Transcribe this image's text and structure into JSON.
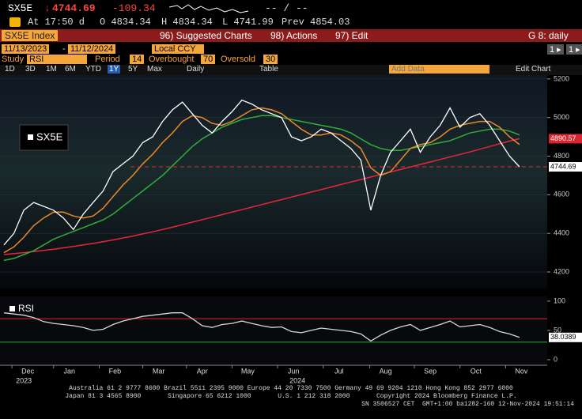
{
  "header": {
    "ticker": "SX5E",
    "change": "-109.34",
    "spread": "-- / --",
    "time": "At 17:50 d",
    "open": "O 4834.34",
    "high": "H 4834.34",
    "low": "L 4741.99",
    "prev": "Prev 4854.03"
  },
  "toolbar": {
    "security": "SX5E Index",
    "menu": [
      "96) Suggested Charts",
      "98) Actions",
      "97) Edit"
    ],
    "page": "G 8: daily"
  },
  "range": {
    "start": "11/13/2023",
    "end": "11/12/2024",
    "currency": "Local CCY",
    "pager": [
      "1 ▸",
      "1 ▸"
    ]
  },
  "study": {
    "label": "Study",
    "period_label": "Period",
    "ob_label": "Overbought",
    "os_label": "Oversold"
  },
  "controls": {
    "periods": [
      "1D",
      "3D",
      "1M",
      "6M",
      "YTD",
      "1Y",
      "5Y",
      "Max"
    ],
    "frequency": "Daily",
    "table": "Table",
    "add_data": "Add Data",
    "edit_chart": "Edit Chart"
  },
  "chart_data": [
    {
      "type": "line",
      "xlim": [
        -0.4,
        54.8
      ],
      "ylim": [
        4114,
        5220
      ],
      "yticks": [
        4200,
        4400,
        4600,
        4800,
        5000,
        5200
      ],
      "grid": true,
      "xticks": [
        {
          "value": 2.4,
          "label": "Dec"
        },
        {
          "value": 6.6,
          "label": "Jan"
        },
        {
          "value": 11.2,
          "label": "Feb"
        },
        {
          "value": 15.6,
          "label": "Mar"
        },
        {
          "value": 20.0,
          "label": "Apr"
        },
        {
          "value": 24.6,
          "label": "May"
        },
        {
          "value": 29.2,
          "label": "Jun"
        },
        {
          "value": 33.8,
          "label": "Jul"
        },
        {
          "value": 38.5,
          "label": "Aug"
        },
        {
          "value": 43.0,
          "label": "Sep"
        },
        {
          "value": 47.6,
          "label": "Oct"
        },
        {
          "value": 52.2,
          "label": "Nov"
        }
      ],
      "years": [
        {
          "value": 2.0,
          "label": "2023"
        },
        {
          "value": 29.6,
          "label": "2024"
        }
      ],
      "series": [
        {
          "name": "SX5E",
          "color": "#ffffff",
          "values": [
            4340,
            4400,
            4520,
            4560,
            4540,
            4520,
            4480,
            4420,
            4500,
            4560,
            4620,
            4720,
            4760,
            4800,
            4870,
            4900,
            4980,
            5040,
            5080,
            5020,
            4960,
            4920,
            4980,
            5030,
            5090,
            5070,
            5040,
            5020,
            5000,
            4900,
            4880,
            4900,
            4940,
            4920,
            4880,
            4840,
            4780,
            4520,
            4700,
            4820,
            4880,
            4940,
            4820,
            4900,
            4960,
            5050,
            4950,
            5000,
            5020,
            4960,
            4880,
            4800,
            4744.69
          ]
        },
        {
          "color": "#e8892a",
          "values": [
            4300,
            4330,
            4380,
            4440,
            4480,
            4510,
            4510,
            4490,
            4480,
            4490,
            4530,
            4590,
            4650,
            4700,
            4760,
            4810,
            4870,
            4920,
            4980,
            5010,
            5000,
            4970,
            4960,
            4980,
            5010,
            5040,
            5050,
            5040,
            5020,
            4980,
            4940,
            4910,
            4910,
            4920,
            4910,
            4880,
            4840,
            4740,
            4700,
            4720,
            4780,
            4840,
            4860,
            4870,
            4900,
            4940,
            4960,
            4970,
            4980,
            4980,
            4950,
            4900,
            4860
          ]
        },
        {
          "color": "#2fae3a",
          "values": [
            4260,
            4270,
            4290,
            4310,
            4340,
            4370,
            4390,
            4410,
            4430,
            4450,
            4470,
            4500,
            4540,
            4580,
            4620,
            4660,
            4700,
            4750,
            4800,
            4850,
            4890,
            4920,
            4950,
            4970,
            4990,
            5000,
            5010,
            5010,
            5000,
            4990,
            4980,
            4970,
            4960,
            4950,
            4940,
            4920,
            4890,
            4860,
            4840,
            4830,
            4830,
            4840,
            4850,
            4860,
            4870,
            4880,
            4900,
            4920,
            4930,
            4940,
            4940,
            4930,
            4910
          ]
        },
        {
          "color": "#e8253c",
          "values": [
            4290,
            4295,
            4300,
            4306,
            4312,
            4318,
            4325,
            4332,
            4340,
            4348,
            4357,
            4366,
            4376,
            4386,
            4397,
            4408,
            4420,
            4432,
            4445,
            4458,
            4471,
            4484,
            4497,
            4510,
            4523,
            4536,
            4549,
            4562,
            4575,
            4588,
            4601,
            4614,
            4627,
            4640,
            4653,
            4666,
            4679,
            4692,
            4705,
            4718,
            4731,
            4744,
            4757,
            4770,
            4783,
            4796,
            4809,
            4822,
            4836,
            4850,
            4864,
            4878,
            4890.57
          ]
        }
      ]
    },
    {
      "type": "line",
      "name": "RSI",
      "period": 14,
      "overbought": 70,
      "oversold": 30,
      "xlim": [
        -0.4,
        54.8
      ],
      "ylim": [
        -9.5,
        108
      ],
      "yticks": [
        0,
        50,
        100
      ],
      "series": [
        {
          "name": "RSI",
          "color": "#d8d8d8",
          "values": [
            80,
            78,
            76,
            72,
            65,
            62,
            60,
            58,
            55,
            50,
            52,
            60,
            66,
            70,
            74,
            76,
            78,
            80,
            80,
            70,
            58,
            55,
            60,
            62,
            66,
            62,
            58,
            55,
            56,
            48,
            46,
            50,
            54,
            52,
            50,
            48,
            44,
            32,
            42,
            50,
            56,
            60,
            50,
            55,
            60,
            66,
            56,
            58,
            60,
            55,
            48,
            44,
            38.0389
          ]
        }
      ]
    }
  ],
  "footer": [
    "Australia 61 2 9777 8600 Brazil 5511 2395 9000 Europe 44 20 7330 7500 Germany 49 69 9204 1210 Hong Kong 852 2977 6000",
    "Japan 81 3 4565 8900       Singapore 65 6212 1000       U.S. 1 212 318 2000       Copyright 2024 Bloomberg Finance L.P.",
    "SN 3506527 CET  GMT+1:00 ba1282-160 12-Nov-2024 19:51:14"
  ]
}
